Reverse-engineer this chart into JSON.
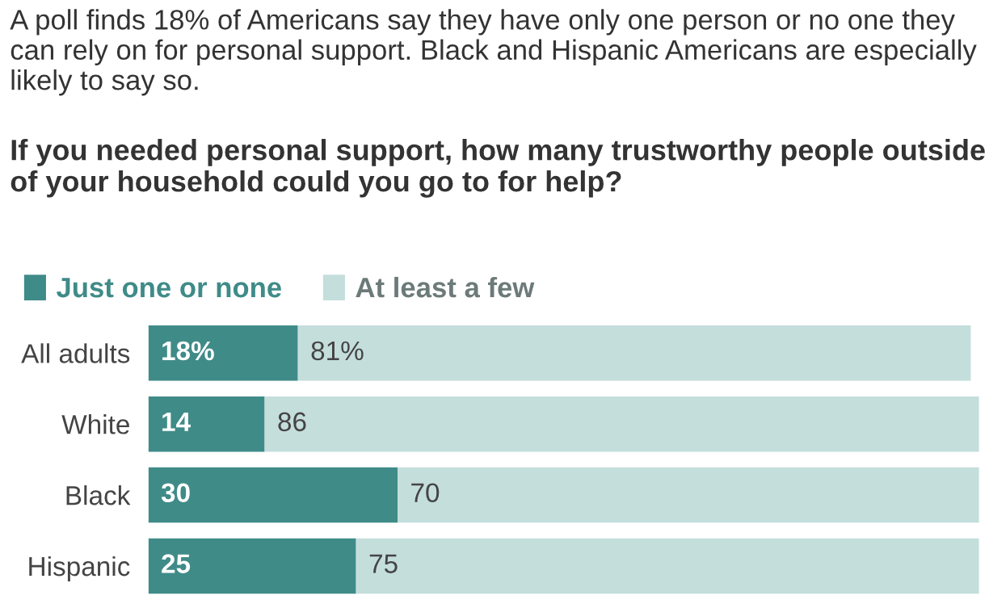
{
  "chart_data": {
    "type": "bar",
    "orientation": "horizontal",
    "stacked": true,
    "subtitle": "A poll finds 18% of Americans say they have only one person or no one they can rely on for personal support. Black and Hispanic Americans are especially likely to say so.",
    "title": "If you needed personal support, how many trustworthy people outside of your household could you go to for help?",
    "categories": [
      "All adults",
      "White",
      "Black",
      "Hispanic"
    ],
    "series": [
      {
        "name": "Just one or none",
        "color": "#3f8b88",
        "values": [
          18,
          14,
          30,
          25
        ],
        "value_labels": [
          "18%",
          "14",
          "30",
          "25"
        ]
      },
      {
        "name": "At least a few",
        "color": "#c4dedc",
        "values": [
          81,
          86,
          70,
          75
        ],
        "value_labels": [
          "81%",
          "86",
          "70",
          "75"
        ]
      }
    ],
    "legend": "top left"
  }
}
